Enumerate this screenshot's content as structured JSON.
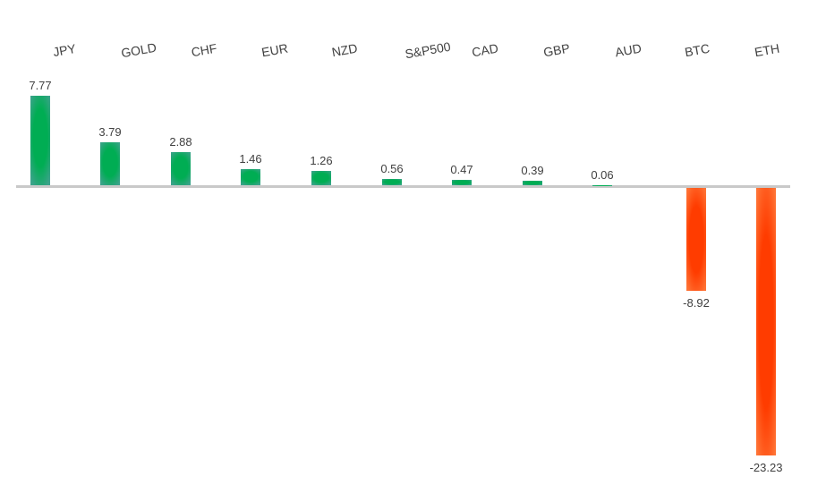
{
  "chart_data": {
    "type": "bar",
    "categories": [
      "JPY",
      "GOLD",
      "CHF",
      "EUR",
      "NZD",
      "S&P500",
      "CAD",
      "GBP",
      "AUD",
      "BTC",
      "ETH"
    ],
    "values": [
      7.77,
      3.79,
      2.88,
      1.46,
      1.26,
      0.56,
      0.47,
      0.39,
      0.06,
      -8.92,
      -23.23
    ],
    "value_labels": [
      "7.77",
      "3.79",
      "2.88",
      "1.46",
      "1.26",
      "0.56",
      "0.47",
      "0.39",
      "0.06",
      "-8.92",
      "-23.23"
    ],
    "title": "",
    "xlabel": "",
    "ylabel": "",
    "ylim": [
      -25,
      9
    ],
    "grid": false,
    "legend_position": "none",
    "category_label_position": "top",
    "category_label_rotation_deg": -10,
    "colors": {
      "positive_bar": "#00ad53",
      "positive_bar_edge": "#3ba38a",
      "negative_bar": "#ff3c00",
      "negative_bar_edge": "#ff7335",
      "axis_line": "#c9c9c9",
      "label_text": "#404040",
      "background": "#ffffff"
    }
  }
}
